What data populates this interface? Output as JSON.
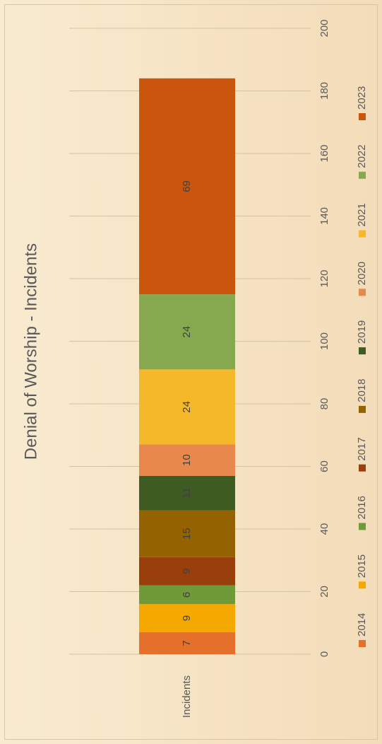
{
  "chart_data": {
    "type": "stacked_bar",
    "title": "Denial of Worship - Incidents",
    "categories": [
      "Incidents"
    ],
    "series": [
      {
        "name": "2014",
        "color": "#e4702b",
        "values": [
          7
        ]
      },
      {
        "name": "2015",
        "color": "#f5a800",
        "values": [
          9
        ]
      },
      {
        "name": "2016",
        "color": "#6f9a38",
        "values": [
          6
        ]
      },
      {
        "name": "2017",
        "color": "#983f0b",
        "values": [
          9
        ]
      },
      {
        "name": "2018",
        "color": "#946200",
        "values": [
          15
        ]
      },
      {
        "name": "2019",
        "color": "#3e5b22",
        "values": [
          11
        ]
      },
      {
        "name": "2020",
        "color": "#e9884d",
        "values": [
          10
        ]
      },
      {
        "name": "2021",
        "color": "#f5b82a",
        "values": [
          24
        ]
      },
      {
        "name": "2022",
        "color": "#86a94f",
        "values": [
          24
        ]
      },
      {
        "name": "2023",
        "color": "#c9560c",
        "values": [
          69
        ]
      }
    ],
    "ylim": [
      0,
      200
    ],
    "yticks": [
      0,
      20,
      40,
      60,
      80,
      100,
      120,
      140,
      160,
      180,
      200
    ],
    "grid": true,
    "legend": "bottom",
    "orientation": "rotated"
  }
}
